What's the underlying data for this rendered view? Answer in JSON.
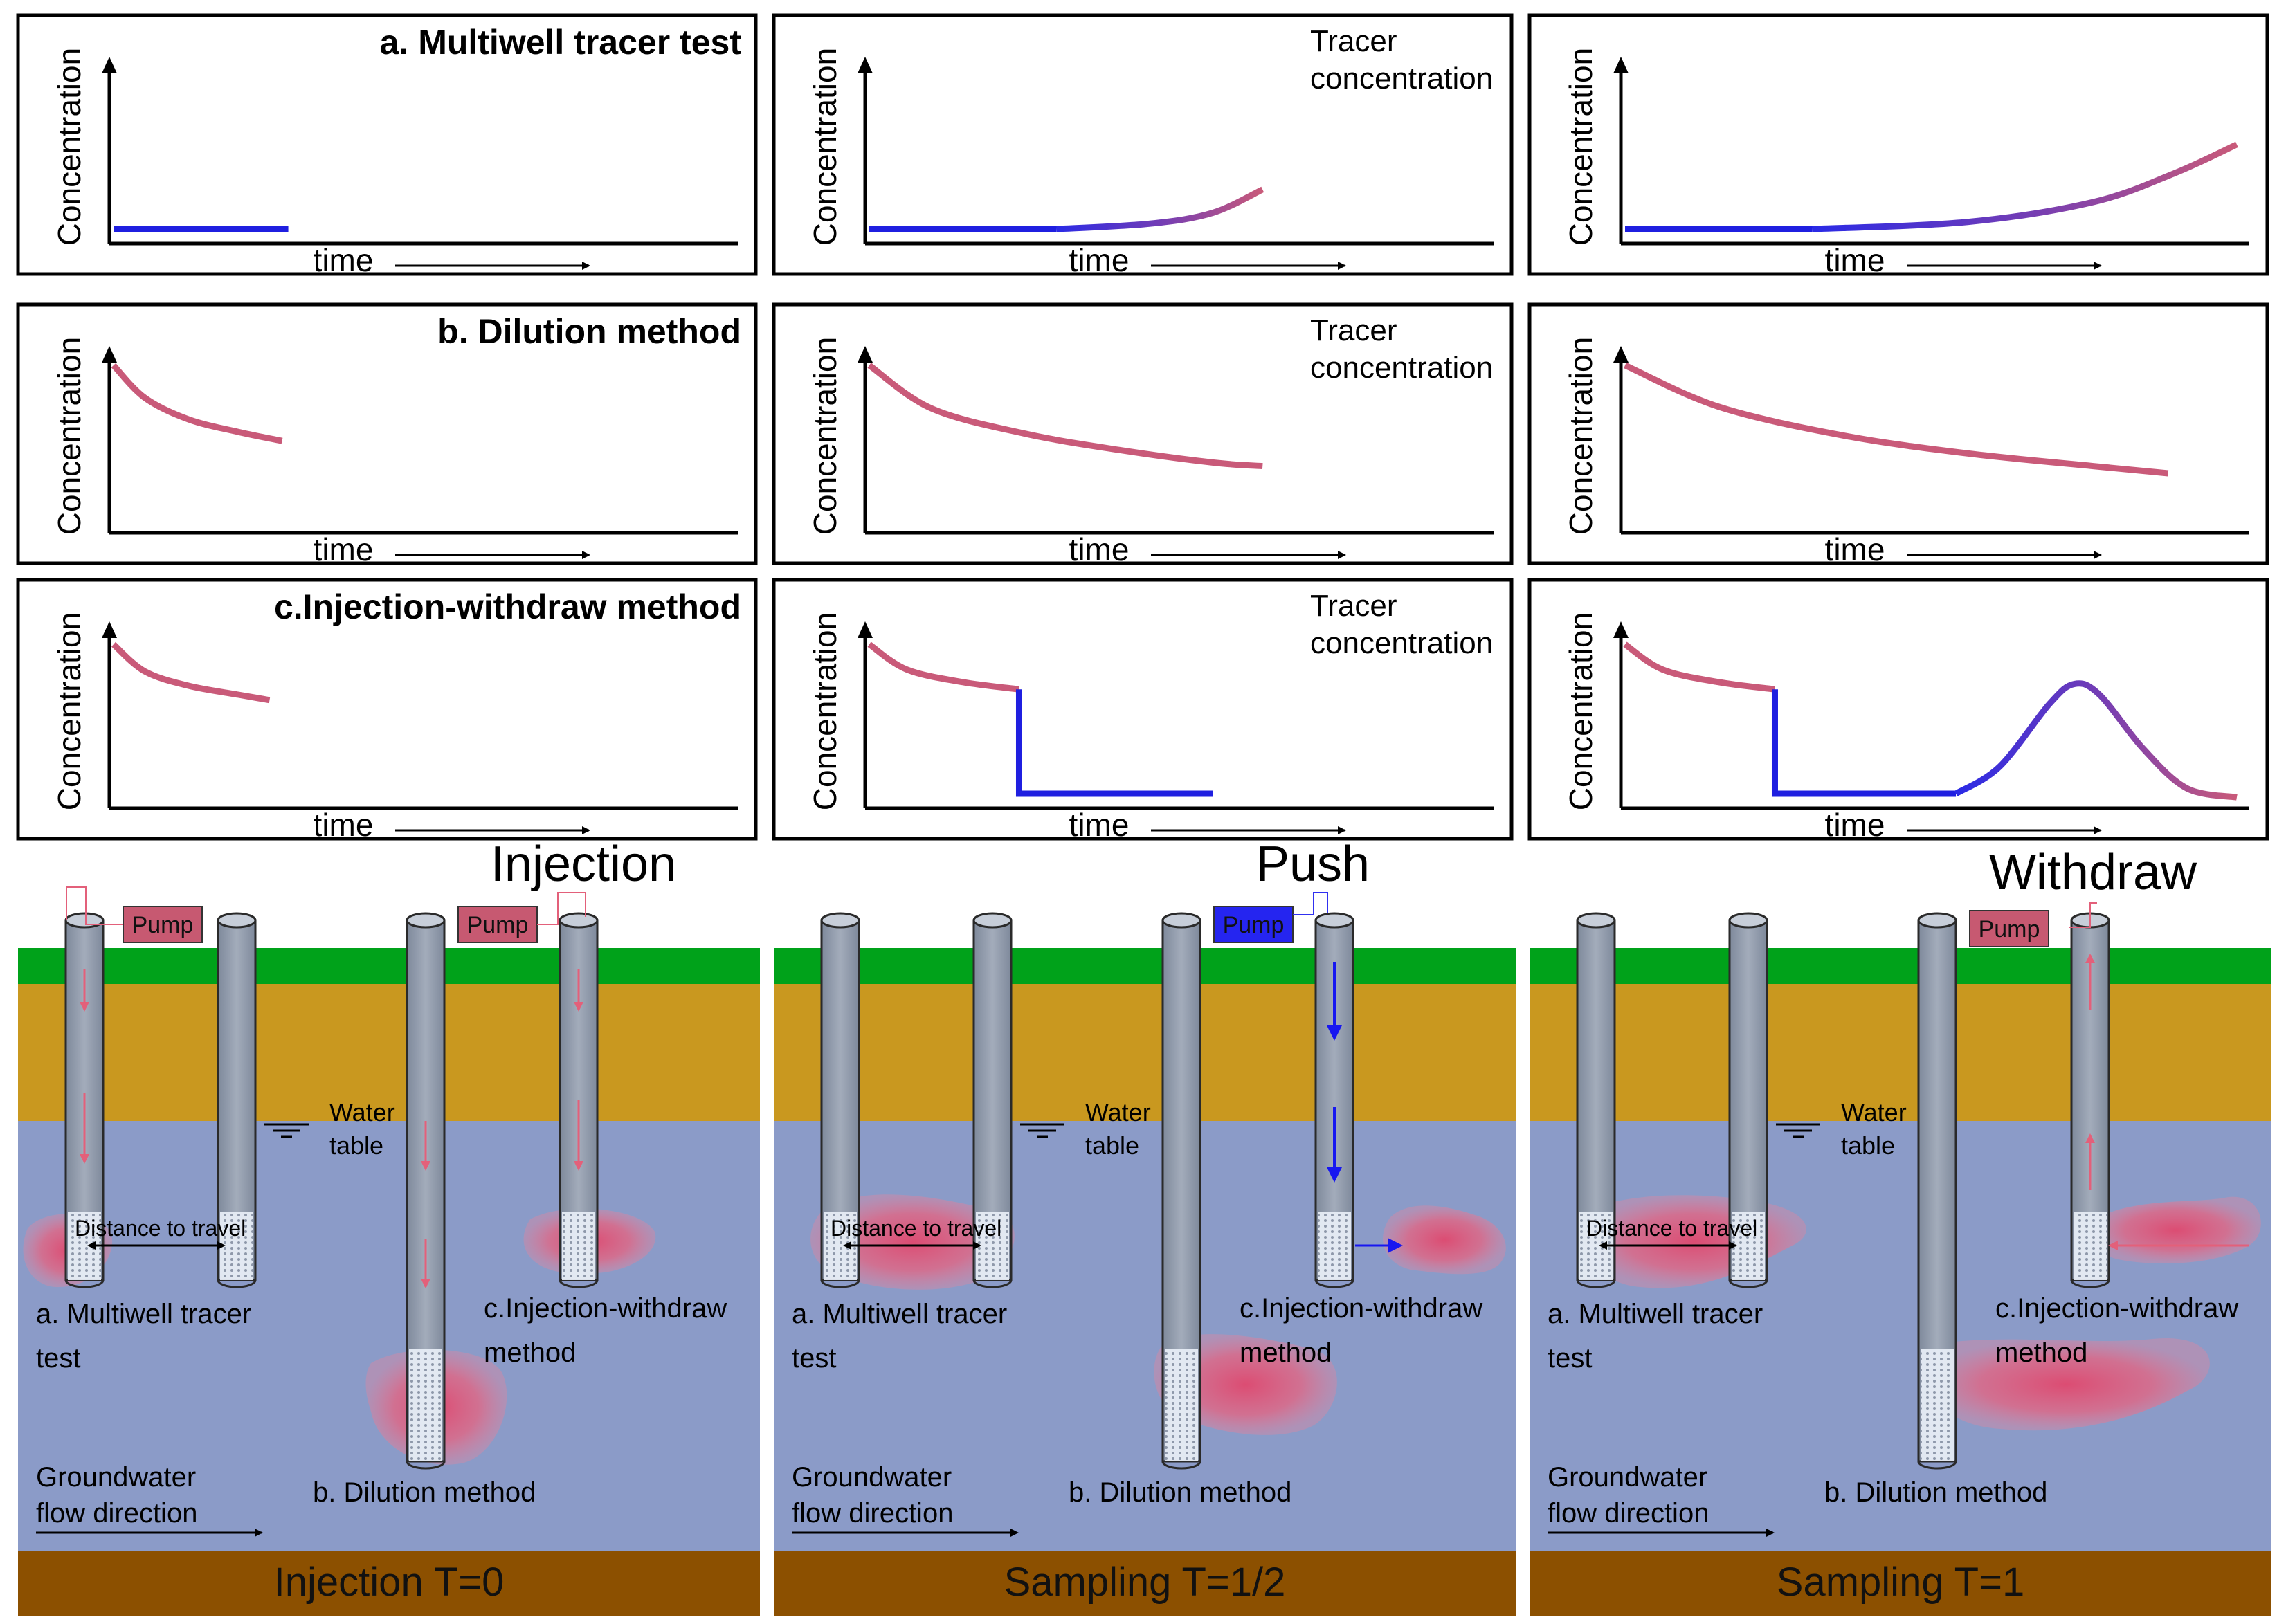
{
  "chart_titles": {
    "multiwell": "a. Multiwell tracer test",
    "dilution": "b. Dilution method",
    "injwd": "c.Injection-withdraw method"
  },
  "axis": {
    "ylabel": "Concentration",
    "xlabel": "time"
  },
  "tracer_label": [
    "Tracer",
    "concentration"
  ],
  "phase_titles": [
    "Injection",
    "Push",
    "Withdraw"
  ],
  "footers": [
    "Injection T=0",
    "Sampling T=1/2",
    "Sampling T=1"
  ],
  "well_labels": {
    "pump": "Pump",
    "water_table": [
      "Water",
      "table"
    ],
    "distance": "Distance to travel",
    "multiwell": [
      "a. Multiwell tracer",
      "test"
    ],
    "injwd": [
      "c.Injection-withdraw",
      "method"
    ],
    "dilution": "b. Dilution method",
    "gw_flow": [
      "Groundwater",
      "flow direction"
    ]
  },
  "colors": {
    "grass": "#00a21a",
    "sand": "#c9981f",
    "water": "#8b9bc8",
    "bedrock": "#8c5000",
    "tracer_pink": "#c85a78",
    "pump_pink": "#c75971",
    "pump_blue": "#2525f0",
    "line_blue": "#1f1fe0",
    "well_gray": "#8e98aa"
  },
  "chart_data": [
    {
      "type": "line",
      "panel": "a-T0",
      "title": "a. Multiwell tracer test",
      "xlabel": "time",
      "ylabel": "Concentration",
      "ylim": [
        0,
        1
      ],
      "xlim": [
        0,
        1
      ],
      "series": [
        {
          "name": "background",
          "color": "blue",
          "x": [
            0,
            0.28
          ],
          "y": [
            0.05,
            0.05
          ]
        }
      ]
    },
    {
      "type": "line",
      "panel": "a-T1/2",
      "xlabel": "time",
      "ylabel": "Concentration",
      "ylim": [
        0,
        1
      ],
      "xlim": [
        0,
        1
      ],
      "series": [
        {
          "name": "background",
          "color": "blue",
          "x": [
            0,
            0.3
          ],
          "y": [
            0.05,
            0.05
          ]
        },
        {
          "name": "tracer breakthrough",
          "color": "blue-to-pink",
          "x": [
            0.3,
            0.45,
            0.55,
            0.63
          ],
          "y": [
            0.05,
            0.08,
            0.14,
            0.27
          ]
        }
      ]
    },
    {
      "type": "line",
      "panel": "a-T1",
      "xlabel": "time",
      "ylabel": "Concentration",
      "ylim": [
        0,
        1
      ],
      "xlim": [
        0,
        1
      ],
      "series": [
        {
          "name": "background",
          "color": "blue",
          "x": [
            0,
            0.3
          ],
          "y": [
            0.05,
            0.05
          ]
        },
        {
          "name": "tracer breakthrough",
          "color": "blue-to-pink",
          "x": [
            0.3,
            0.55,
            0.75,
            0.88,
            0.98
          ],
          "y": [
            0.05,
            0.09,
            0.2,
            0.36,
            0.52
          ]
        }
      ]
    },
    {
      "type": "line",
      "panel": "b-T0",
      "title": "b. Dilution method",
      "xlabel": "time",
      "ylabel": "Concentration",
      "ylim": [
        0,
        1
      ],
      "xlim": [
        0,
        1
      ],
      "series": [
        {
          "name": "tracer",
          "color": "pink",
          "x": [
            0,
            0.05,
            0.12,
            0.2,
            0.27
          ],
          "y": [
            0.9,
            0.72,
            0.6,
            0.53,
            0.48
          ]
        }
      ]
    },
    {
      "type": "line",
      "panel": "b-T1/2",
      "xlabel": "time",
      "ylabel": "Concentration",
      "ylim": [
        0,
        1
      ],
      "xlim": [
        0,
        1
      ],
      "series": [
        {
          "name": "tracer",
          "color": "pink",
          "x": [
            0,
            0.1,
            0.25,
            0.4,
            0.55,
            0.63
          ],
          "y": [
            0.9,
            0.66,
            0.52,
            0.43,
            0.36,
            0.34
          ]
        }
      ]
    },
    {
      "type": "line",
      "panel": "b-T1",
      "xlabel": "time",
      "ylabel": "Concentration",
      "ylim": [
        0,
        1
      ],
      "xlim": [
        0,
        1
      ],
      "series": [
        {
          "name": "tracer",
          "color": "pink",
          "x": [
            0,
            0.15,
            0.35,
            0.55,
            0.75,
            0.87
          ],
          "y": [
            0.9,
            0.67,
            0.51,
            0.41,
            0.34,
            0.3
          ]
        }
      ]
    },
    {
      "type": "line",
      "panel": "c-T0",
      "title": "c.Injection-withdraw method",
      "xlabel": "time",
      "ylabel": "Concentration",
      "ylim": [
        0,
        1
      ],
      "xlim": [
        0,
        1
      ],
      "series": [
        {
          "name": "injection",
          "color": "pink",
          "x": [
            0,
            0.05,
            0.12,
            0.2,
            0.25
          ],
          "y": [
            0.88,
            0.73,
            0.65,
            0.6,
            0.57
          ]
        }
      ]
    },
    {
      "type": "line",
      "panel": "c-T1/2",
      "xlabel": "time",
      "ylabel": "Concentration",
      "ylim": [
        0,
        1
      ],
      "xlim": [
        0,
        1
      ],
      "series": [
        {
          "name": "injection",
          "color": "pink",
          "x": [
            0,
            0.06,
            0.15,
            0.24
          ],
          "y": [
            0.88,
            0.74,
            0.67,
            0.63
          ]
        },
        {
          "name": "push",
          "color": "blue",
          "x": [
            0.24,
            0.24,
            0.55
          ],
          "y": [
            0.63,
            0.05,
            0.05
          ]
        }
      ]
    },
    {
      "type": "line",
      "panel": "c-T1",
      "xlabel": "time",
      "ylabel": "Concentration",
      "ylim": [
        0,
        1
      ],
      "xlim": [
        0,
        1
      ],
      "series": [
        {
          "name": "injection",
          "color": "pink",
          "x": [
            0,
            0.06,
            0.15,
            0.24
          ],
          "y": [
            0.88,
            0.74,
            0.67,
            0.63
          ]
        },
        {
          "name": "push",
          "color": "blue",
          "x": [
            0.24,
            0.24,
            0.53
          ],
          "y": [
            0.63,
            0.05,
            0.05
          ]
        },
        {
          "name": "withdraw",
          "color": "blue-to-pink",
          "x": [
            0.53,
            0.6,
            0.68,
            0.72,
            0.76,
            0.83,
            0.9,
            0.98
          ],
          "y": [
            0.05,
            0.2,
            0.55,
            0.66,
            0.6,
            0.3,
            0.08,
            0.03
          ]
        }
      ]
    }
  ]
}
